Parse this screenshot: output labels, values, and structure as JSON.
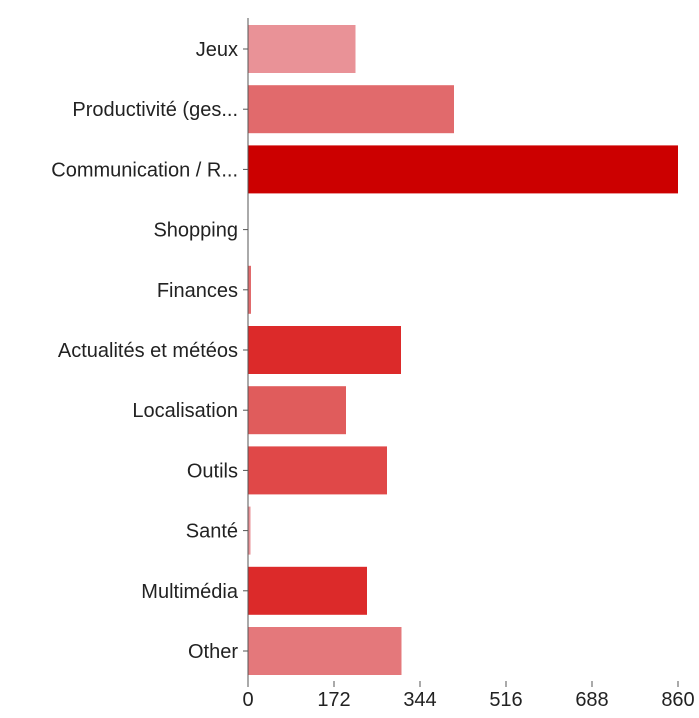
{
  "chart_data": {
    "type": "bar",
    "orientation": "horizontal",
    "categories": [
      "Jeux",
      "Productivité (ges...",
      "Communication / R...",
      "Shopping",
      "Finances",
      "Actualités et météos",
      "Localisation",
      "Outils",
      "Santé",
      "Multimédia",
      "Other"
    ],
    "values": [
      215,
      412,
      860,
      0,
      6,
      306,
      196,
      278,
      5,
      238,
      307
    ],
    "colors": [
      "#e99297",
      "#e16a6c",
      "#cc0000",
      "#e99297",
      "#e16a6c",
      "#dc2a2a",
      "#e05c5c",
      "#e04848",
      "#e99297",
      "#dc2a2a",
      "#e4787b"
    ],
    "xlim": [
      0,
      860
    ],
    "xticks": [
      "0",
      "172",
      "344",
      "516",
      "688",
      "860"
    ],
    "grid": false,
    "legend": "none"
  }
}
